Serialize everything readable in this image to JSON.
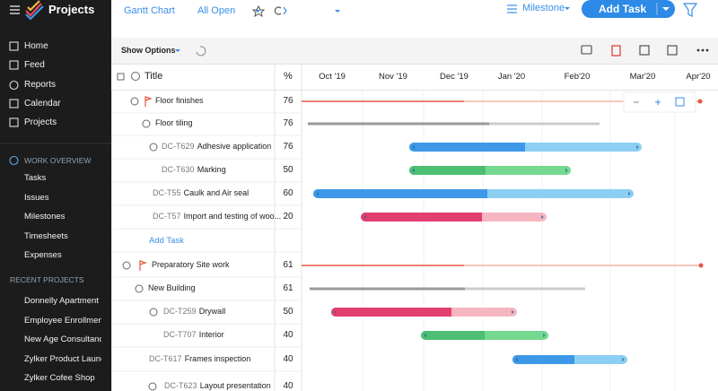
{
  "app": {
    "title": "Projects"
  },
  "nav": [
    "Home",
    "Feed",
    "Reports",
    "Calendar",
    "Projects"
  ],
  "work_overview": {
    "title": "WORK OVERVIEW",
    "items": [
      "Tasks",
      "Issues",
      "Milestones",
      "Timesheets",
      "Expenses"
    ]
  },
  "recent_projects": {
    "title": "RECENT PROJECTS",
    "items": [
      "Donnelly Apartment",
      "Employee Enrollmen",
      "New Age Consultanc",
      "Zylker Product Launc",
      "Zylker Cofee Shop"
    ]
  },
  "toolbar": {
    "view": "Gantt Chart",
    "filter": "All Open",
    "milestone": "Milestone",
    "add_task": "Add Task",
    "show_options": "Show Options"
  },
  "table": {
    "columns": [
      "Title",
      "%"
    ],
    "rows": [
      {
        "name": "Floor finishes",
        "percent": 76
      },
      {
        "name": "Floor tiling",
        "percent": 76
      },
      {
        "id": "DC-T629",
        "name": "Adhesive application",
        "percent": 76
      },
      {
        "id": "DC-T630",
        "name": "Marking",
        "percent": 50
      },
      {
        "id": "DC-T55",
        "name": "Caulk and Air seal",
        "percent": 60
      },
      {
        "id": "DC-T57",
        "name": "Import and testing of woo...",
        "percent": 20
      },
      {
        "name": "Preparatory Site work",
        "percent": 61
      },
      {
        "name": "New Building",
        "percent": 61
      },
      {
        "id": "DC-T259",
        "name": "Drywall",
        "percent": 50
      },
      {
        "id": "DC-T707",
        "name": "Interior",
        "percent": 40
      },
      {
        "id": "DC-T617",
        "name": "Frames inspection",
        "percent": 40
      },
      {
        "id": "DC-T623",
        "name": "Layout presentation",
        "percent": 40
      }
    ]
  },
  "add_task_link": "Add Task",
  "timeline": {
    "months": [
      "Oct '19",
      "Nov '19",
      "Dec '19",
      "Jan '20",
      "Feb'20",
      "Mar'20",
      "Apr'20"
    ]
  }
}
